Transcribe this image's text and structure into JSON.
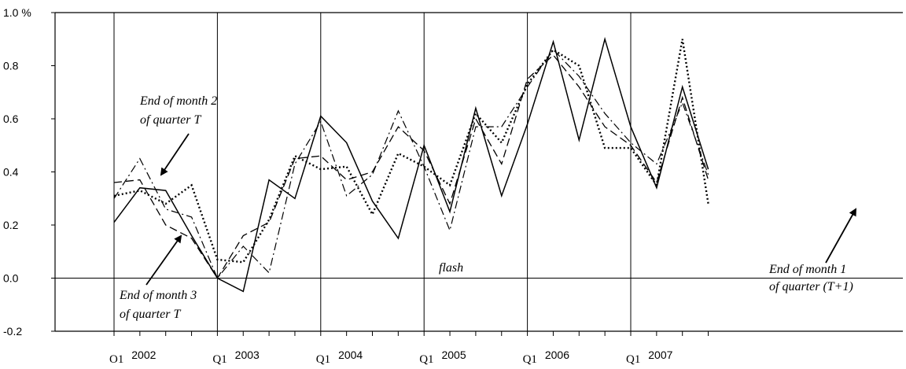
{
  "chart_data": {
    "type": "line",
    "title": "",
    "xlabel": "",
    "ylabel": "",
    "ylim": [
      -0.2,
      1.0
    ],
    "y_ticks": [
      {
        "value": 1.0,
        "label": "1.0 %"
      },
      {
        "value": 0.8,
        "label": "0.8"
      },
      {
        "value": 0.6,
        "label": "0.6"
      },
      {
        "value": 0.4,
        "label": "0.4"
      },
      {
        "value": 0.2,
        "label": "0.2"
      },
      {
        "value": 0.0,
        "label": "0.0"
      },
      {
        "value": -0.2,
        "label": "-0.2"
      }
    ],
    "quarter_labels": [
      "O1",
      "Q1",
      "Q1",
      "Q1",
      "Q1",
      "Q1"
    ],
    "year_labels": [
      "2002",
      "2003",
      "2004",
      "2005",
      "2006",
      "2007"
    ],
    "x": [
      "2002Q1",
      "2002Q2",
      "2002Q3",
      "2002Q4",
      "2003Q1",
      "2003Q2",
      "2003Q3",
      "2003Q4",
      "2004Q1",
      "2004Q2",
      "2004Q3",
      "2004Q4",
      "2005Q1",
      "2005Q2",
      "2005Q3",
      "2005Q4",
      "2006Q1",
      "2006Q2",
      "2006Q3",
      "2006Q4",
      "2007Q1",
      "2007Q2",
      "2007Q3",
      "2007Q4"
    ],
    "series": [
      {
        "name": "",
        "style": "solid",
        "values": [
          0.21,
          0.34,
          0.33,
          0.16,
          0.0,
          -0.05,
          0.37,
          0.3,
          0.61,
          0.51,
          0.29,
          0.15,
          0.5,
          0.25,
          0.64,
          0.31,
          0.58,
          0.89,
          0.52,
          0.9,
          0.57,
          0.34,
          0.72,
          0.41
        ]
      },
      {
        "name": "",
        "style": "dashed",
        "values": [
          0.36,
          0.37,
          0.2,
          0.15,
          0.0,
          0.16,
          0.21,
          0.45,
          0.46,
          0.37,
          0.4,
          0.57,
          0.48,
          0.28,
          0.6,
          0.43,
          0.75,
          0.84,
          0.72,
          0.57,
          0.5,
          0.36,
          0.68,
          0.37
        ]
      },
      {
        "name": "",
        "style": "dotted",
        "values": [
          0.31,
          0.33,
          0.28,
          0.35,
          0.07,
          0.06,
          0.22,
          0.46,
          0.41,
          0.42,
          0.24,
          0.47,
          0.42,
          0.35,
          0.62,
          0.51,
          0.73,
          0.86,
          0.8,
          0.49,
          0.49,
          0.35,
          0.9,
          0.28
        ]
      },
      {
        "name": "",
        "style": "dash-dot",
        "values": [
          0.3,
          0.45,
          0.26,
          0.23,
          0.0,
          0.12,
          0.02,
          0.43,
          0.59,
          0.31,
          0.39,
          0.63,
          0.42,
          0.18,
          0.57,
          0.57,
          0.72,
          0.86,
          0.76,
          0.62,
          0.51,
          0.43,
          0.66,
          0.39
        ]
      }
    ],
    "annotations": [
      {
        "id": "m2",
        "lines": [
          "End of month 2",
          "of quarter T"
        ]
      },
      {
        "id": "m3",
        "lines": [
          "End of month 3",
          "of quarter T"
        ]
      },
      {
        "id": "flash",
        "lines": [
          "flash"
        ]
      },
      {
        "id": "m1",
        "lines": [
          "End of month 1",
          "of quarter (T+1)"
        ]
      }
    ],
    "grid": {
      "vertical_at_Q1": true,
      "horizontal": false,
      "zero_line": true
    },
    "legend": "none"
  }
}
